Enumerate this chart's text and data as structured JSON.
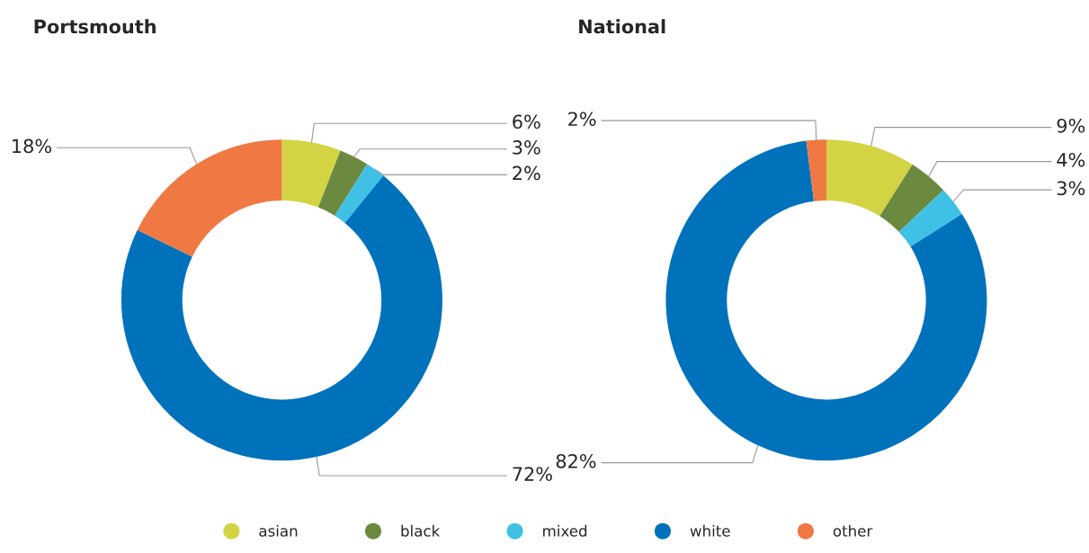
{
  "chart_data": [
    {
      "type": "donut",
      "title": "Portsmouth",
      "categories": [
        "asian",
        "black",
        "mixed",
        "white",
        "other"
      ],
      "values": [
        6,
        3,
        2,
        72,
        18
      ],
      "value_labels": [
        "6%",
        "3%",
        "2%",
        "72%",
        "18%"
      ],
      "colors": [
        "#d3d444",
        "#6b8a3f",
        "#3fc1e6",
        "#0072bb",
        "#ef7843"
      ],
      "legend": "bottom"
    },
    {
      "type": "donut",
      "title": "National",
      "values": [
        9,
        4,
        3,
        82,
        2
      ],
      "value_labels": [
        "9%",
        "4%",
        "3%",
        "82%",
        "2%"
      ],
      "colors": [
        "#d3d444",
        "#6b8a3f",
        "#3fc1e6",
        "#0072bb",
        "#ef7843"
      ]
    }
  ]
}
